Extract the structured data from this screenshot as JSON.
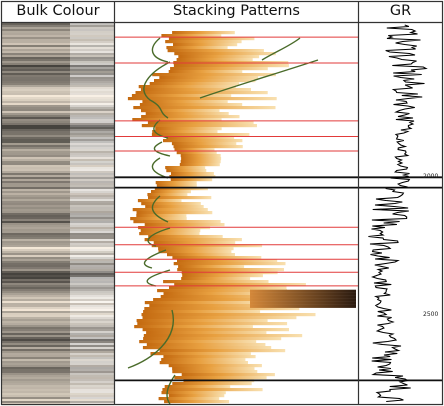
{
  "panels": {
    "bulk_colour": {
      "title": "Bulk Colour"
    },
    "stacking_patterns": {
      "title": "Stacking Patterns"
    },
    "gr": {
      "title": "GR"
    }
  },
  "depth_labels": [
    "2000",
    "2500"
  ],
  "colors": {
    "border": "#333333",
    "boundary_red": "#e23a3a",
    "boundary_black": "#111111",
    "trend_curve": "#4a6b2a",
    "gr_trace": "#000000",
    "stack_dark": "#c46a10",
    "stack_light": "#f7d9a0"
  },
  "stacking_boundaries": [
    {
      "kind": "red",
      "level": 0.037
    },
    {
      "kind": "red",
      "level": 0.105
    },
    {
      "kind": "red",
      "level": 0.257
    },
    {
      "kind": "red",
      "level": 0.298
    },
    {
      "kind": "red",
      "level": 0.336
    },
    {
      "kind": "black",
      "level": 0.405
    },
    {
      "kind": "black",
      "level": 0.432
    },
    {
      "kind": "red",
      "level": 0.536
    },
    {
      "kind": "red",
      "level": 0.582
    },
    {
      "kind": "red",
      "level": 0.62
    },
    {
      "kind": "red",
      "level": 0.654
    },
    {
      "kind": "red",
      "level": 0.69
    },
    {
      "kind": "black",
      "level": 0.938
    }
  ]
}
